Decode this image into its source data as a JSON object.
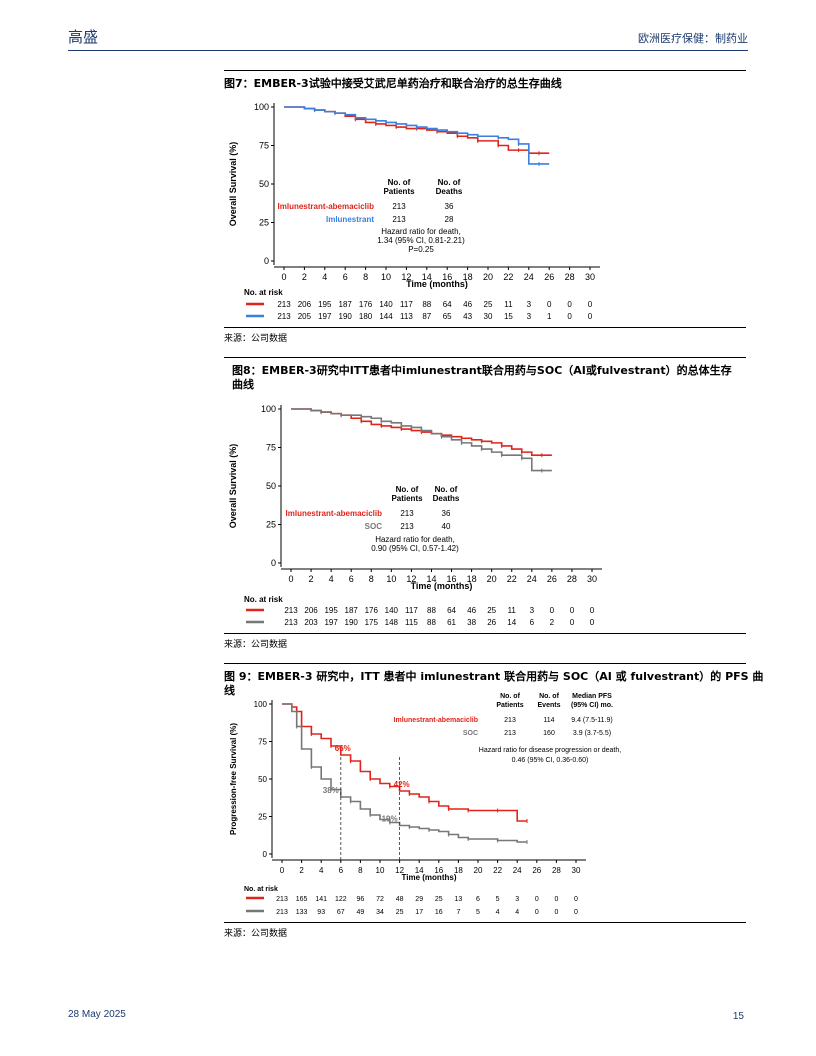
{
  "header": {
    "brand": "高盛",
    "section": "欧洲医疗保健：制药业"
  },
  "footer": {
    "date": "28 May 2025",
    "page": "15"
  },
  "figures": [
    {
      "title": "图7：EMBER-3试验中接受艾武尼单药治疗和联合治疗的总生存曲线",
      "source": "来源：公司数据"
    },
    {
      "title": "图8：EMBER-3研究中ITT患者中imlunestrant联合用药与SOC（AI或fulvestrant）的总体生存曲线",
      "source": "来源：公司数据"
    },
    {
      "title": "图 9：EMBER-3 研究中，ITT 患者中 imlunestrant 联合用药与 SOC（AI 或 fulvestrant）的 PFS 曲线",
      "source": "来源：公司数据"
    }
  ],
  "colors": {
    "red": "#e0241a",
    "blue": "#3b7fe0",
    "gray": "#777777",
    "header_blue": "#1c3a6e"
  },
  "chart_data": [
    {
      "type": "line",
      "xlabel": "Time (months)",
      "ylabel": "Overall Survival (%)",
      "xlim": [
        0,
        30
      ],
      "ylim": [
        0,
        100
      ],
      "xticks": [
        0,
        2,
        4,
        6,
        8,
        10,
        12,
        14,
        16,
        18,
        20,
        22,
        24,
        26,
        28,
        30
      ],
      "yticks": [
        0,
        25,
        50,
        75,
        100
      ],
      "table_headers": [
        "No. of Patients",
        "No. of Deaths"
      ],
      "legend_rows": [
        {
          "name": "Imlunestrant-abemaciclib",
          "patients": "213",
          "deaths": "36",
          "color": "red"
        },
        {
          "name": "Imlunestrant",
          "patients": "213",
          "deaths": "28",
          "color": "blue"
        }
      ],
      "hr_text": [
        "Hazard ratio for death,",
        "1.34 (95% CI, 0.81-2.21)",
        "P=0.25"
      ],
      "risk_title": "No. at risk",
      "risk": [
        {
          "color": "red",
          "values": [
            "213",
            "206",
            "195",
            "187",
            "176",
            "140",
            "117",
            "88",
            "64",
            "46",
            "25",
            "11",
            "3",
            "0",
            "0",
            "0"
          ]
        },
        {
          "color": "blue",
          "values": [
            "213",
            "205",
            "197",
            "190",
            "180",
            "144",
            "113",
            "87",
            "65",
            "43",
            "30",
            "15",
            "3",
            "1",
            "0",
            "0"
          ]
        }
      ],
      "series": [
        {
          "name": "Imlunestrant-abemaciclib",
          "color": "red",
          "x": [
            0,
            2,
            3,
            4,
            5,
            6,
            7,
            8,
            9,
            10,
            11,
            12,
            13,
            14,
            15,
            16,
            17,
            18,
            19,
            20,
            21,
            22,
            23,
            24,
            25,
            26
          ],
          "y": [
            100,
            99,
            98,
            97,
            96,
            94,
            92,
            90,
            89,
            88,
            87,
            86,
            86,
            85,
            84,
            83,
            81,
            80,
            78,
            78,
            75,
            72,
            72,
            70,
            70,
            70
          ]
        },
        {
          "name": "Imlunestrant",
          "color": "blue",
          "x": [
            0,
            2,
            3,
            4,
            5,
            6,
            7,
            8,
            9,
            10,
            11,
            12,
            13,
            14,
            15,
            16,
            17,
            18,
            19,
            20,
            21,
            22,
            23,
            24,
            25,
            26
          ],
          "y": [
            100,
            99,
            98,
            97,
            96,
            95,
            93,
            92,
            91,
            90,
            89,
            88,
            87,
            86,
            85,
            84,
            83,
            82,
            81,
            81,
            80,
            79,
            76,
            63,
            63,
            63
          ]
        }
      ]
    },
    {
      "type": "line",
      "xlabel": "Time (months)",
      "ylabel": "Overall Survival (%)",
      "xlim": [
        0,
        30
      ],
      "ylim": [
        0,
        100
      ],
      "xticks": [
        0,
        2,
        4,
        6,
        8,
        10,
        12,
        14,
        16,
        18,
        20,
        22,
        24,
        26,
        28,
        30
      ],
      "yticks": [
        0,
        25,
        50,
        75,
        100
      ],
      "table_headers": [
        "No. of Patients",
        "No. of Deaths"
      ],
      "legend_rows": [
        {
          "name": "Imlunestrant-abemaciclib",
          "patients": "213",
          "deaths": "36",
          "color": "red"
        },
        {
          "name": "SOC",
          "patients": "213",
          "deaths": "40",
          "color": "gray"
        }
      ],
      "hr_text": [
        "Hazard ratio for death,",
        "0.90 (95% CI, 0.57-1.42)"
      ],
      "risk_title": "No. at risk",
      "risk": [
        {
          "color": "red",
          "values": [
            "213",
            "206",
            "195",
            "187",
            "176",
            "140",
            "117",
            "88",
            "64",
            "46",
            "25",
            "11",
            "3",
            "0",
            "0",
            "0"
          ]
        },
        {
          "color": "gray",
          "values": [
            "213",
            "203",
            "197",
            "190",
            "175",
            "148",
            "115",
            "88",
            "61",
            "38",
            "26",
            "14",
            "6",
            "2",
            "0",
            "0"
          ]
        }
      ],
      "series": [
        {
          "name": "Imlunestrant-abemaciclib",
          "color": "red",
          "x": [
            0,
            2,
            3,
            4,
            5,
            6,
            7,
            8,
            9,
            10,
            11,
            12,
            13,
            14,
            15,
            16,
            17,
            18,
            19,
            20,
            21,
            22,
            23,
            24,
            25,
            26
          ],
          "y": [
            100,
            99,
            98,
            97,
            96,
            94,
            92,
            90,
            89,
            88,
            87,
            86,
            85,
            84,
            83,
            82,
            81,
            80,
            79,
            78,
            76,
            74,
            72,
            70,
            70,
            70
          ]
        },
        {
          "name": "SOC",
          "color": "gray",
          "x": [
            0,
            2,
            3,
            4,
            5,
            6,
            7,
            8,
            9,
            10,
            11,
            12,
            13,
            14,
            15,
            16,
            17,
            18,
            19,
            20,
            21,
            22,
            23,
            24,
            25,
            26
          ],
          "y": [
            100,
            99,
            98,
            97,
            96,
            96,
            95,
            94,
            92,
            91,
            89,
            88,
            86,
            84,
            82,
            80,
            78,
            76,
            74,
            72,
            70,
            70,
            68,
            60,
            60,
            60
          ]
        }
      ]
    },
    {
      "type": "line",
      "xlabel": "Time (months)",
      "ylabel": "Progression-free Survival (%)",
      "xlim": [
        0,
        30
      ],
      "ylim": [
        0,
        100
      ],
      "xticks": [
        0,
        2,
        4,
        6,
        8,
        10,
        12,
        14,
        16,
        18,
        20,
        22,
        24,
        26,
        28,
        30
      ],
      "yticks": [
        0,
        25,
        50,
        75,
        100
      ],
      "table_headers": [
        "No. of Patients",
        "No. of Events",
        "Median PFS (95% CI) mo."
      ],
      "legend_rows": [
        {
          "name": "Imlunestrant-abemaciclib",
          "patients": "213",
          "events": "114",
          "median": "9.4 (7.5-11.9)",
          "color": "red"
        },
        {
          "name": "SOC",
          "patients": "213",
          "events": "160",
          "median": "3.9 (3.7-5.5)",
          "color": "gray"
        }
      ],
      "hr_text": [
        "Hazard ratio for disease progression or death,",
        "0.46 (95% CI, 0.36-0.60)"
      ],
      "annotations": [
        {
          "text": "66%",
          "x": 6,
          "y": 66,
          "color": "red"
        },
        {
          "text": "42%",
          "x": 12,
          "y": 42,
          "color": "red"
        },
        {
          "text": "38%",
          "x": 6,
          "y": 38,
          "color": "gray"
        },
        {
          "text": "19%",
          "x": 12,
          "y": 19,
          "color": "gray"
        }
      ],
      "risk_title": "No. at risk",
      "risk": [
        {
          "color": "red",
          "values": [
            "213",
            "165",
            "141",
            "122",
            "96",
            "72",
            "48",
            "29",
            "25",
            "13",
            "6",
            "5",
            "3",
            "0",
            "0",
            "0"
          ]
        },
        {
          "color": "gray",
          "values": [
            "213",
            "133",
            "93",
            "67",
            "49",
            "34",
            "25",
            "17",
            "16",
            "7",
            "5",
            "4",
            "4",
            "0",
            "0",
            "0"
          ]
        }
      ],
      "series": [
        {
          "name": "Imlunestrant-abemaciclib",
          "color": "red",
          "x": [
            0,
            1,
            1.5,
            2,
            3,
            4,
            5,
            6,
            7,
            8,
            9,
            10,
            11,
            12,
            13,
            14,
            15,
            16,
            17,
            18,
            19,
            20,
            22,
            24,
            25
          ],
          "y": [
            100,
            98,
            95,
            85,
            80,
            77,
            72,
            66,
            62,
            55,
            50,
            47,
            45,
            42,
            40,
            38,
            35,
            32,
            30,
            30,
            29,
            29,
            29,
            22,
            22
          ]
        },
        {
          "name": "SOC",
          "color": "gray",
          "x": [
            0,
            1,
            1.5,
            2,
            3,
            4,
            5,
            6,
            7,
            8,
            9,
            10,
            11,
            12,
            13,
            14,
            15,
            16,
            17,
            18,
            19,
            20,
            22,
            24,
            25
          ],
          "y": [
            100,
            95,
            85,
            70,
            58,
            50,
            43,
            38,
            35,
            30,
            26,
            23,
            21,
            19,
            18,
            17,
            16,
            15,
            13,
            11,
            10,
            10,
            9,
            8,
            8
          ]
        }
      ]
    }
  ]
}
